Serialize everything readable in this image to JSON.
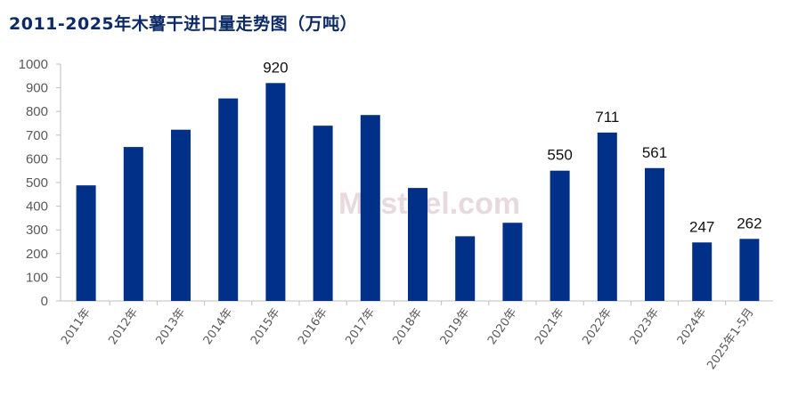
{
  "chart_data": {
    "type": "bar",
    "title": "2011-2025年木薯干进口量走势图（万吨）",
    "categories": [
      "2011年",
      "2012年",
      "2013年",
      "2014年",
      "2015年",
      "2016年",
      "2017年",
      "2018年",
      "2019年",
      "2020年",
      "2021年",
      "2022年",
      "2023年",
      "2024年",
      "2025年1-5月"
    ],
    "values": [
      488,
      650,
      723,
      855,
      920,
      740,
      785,
      477,
      273,
      330,
      550,
      711,
      561,
      247,
      262
    ],
    "data_labels": [
      null,
      null,
      null,
      null,
      "920",
      null,
      null,
      null,
      null,
      null,
      "550",
      "711",
      "561",
      "247",
      "262"
    ],
    "ylim": [
      0,
      1000
    ],
    "yticks": [
      0,
      100,
      200,
      300,
      400,
      500,
      600,
      700,
      800,
      900,
      1000
    ],
    "xlabel": "",
    "ylabel": "",
    "grid": false,
    "bar_color": "#003087",
    "watermark": "Mysteel.com"
  }
}
